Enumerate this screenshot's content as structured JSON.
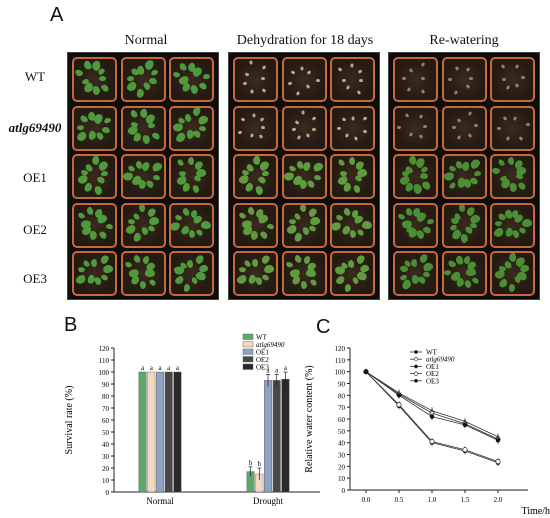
{
  "panel_a": {
    "letter": "A",
    "columns": [
      "Normal",
      "Dehydration for 18 days",
      "Re-watering"
    ],
    "rows": [
      "WT",
      "atlg69490",
      "OE1",
      "OE2",
      "OE3"
    ]
  },
  "panel_b": {
    "letter": "B"
  },
  "panel_c": {
    "letter": "C"
  },
  "chart_data": [
    {
      "type": "bar",
      "ylabel": "Survival rate (%)",
      "categories": [
        "Normal",
        "Drought"
      ],
      "ylim": [
        0,
        120
      ],
      "yticks": [
        0,
        10,
        20,
        30,
        40,
        50,
        60,
        70,
        80,
        90,
        100,
        110,
        120
      ],
      "series": [
        {
          "name": "WT",
          "values": [
            100,
            17
          ],
          "errors": [
            0,
            4
          ],
          "letters": [
            "a",
            "b"
          ],
          "color": "#5aa86a"
        },
        {
          "name": "atlg69490",
          "values": [
            100,
            15
          ],
          "errors": [
            0,
            5
          ],
          "letters": [
            "a",
            "b"
          ],
          "color": "#f2d8c4"
        },
        {
          "name": "OE1",
          "values": [
            100,
            93
          ],
          "errors": [
            0,
            5
          ],
          "letters": [
            "a",
            "a"
          ],
          "color": "#8ea2c4"
        },
        {
          "name": "OE2",
          "values": [
            100,
            93
          ],
          "errors": [
            0,
            5
          ],
          "letters": [
            "a",
            "a"
          ],
          "color": "#484848"
        },
        {
          "name": "OE3",
          "values": [
            100,
            94
          ],
          "errors": [
            0,
            6
          ],
          "letters": [
            "a",
            "a"
          ],
          "color": "#2a2a2a"
        }
      ]
    },
    {
      "type": "line",
      "ylabel": "Relative water content (%)",
      "xlabel": "Time/h",
      "x": [
        0.0,
        0.5,
        1.0,
        1.5,
        2.0
      ],
      "xticks": [
        "0.0",
        "0.5",
        "1.0",
        "1.5",
        "2.0"
      ],
      "ylim": [
        0,
        120
      ],
      "yticks": [
        0,
        10,
        20,
        30,
        40,
        50,
        60,
        70,
        80,
        90,
        100,
        110,
        120
      ],
      "series": [
        {
          "name": "WT",
          "values": [
            100,
            71,
            40,
            33,
            23
          ],
          "marker": "filled-circle"
        },
        {
          "name": "atlg69490",
          "values": [
            100,
            72,
            41,
            34,
            24
          ],
          "marker": "open-circle"
        },
        {
          "name": "OE1",
          "values": [
            100,
            82,
            67,
            58,
            45
          ],
          "marker": "triangle"
        },
        {
          "name": "OE2",
          "values": [
            100,
            81,
            65,
            56,
            43
          ],
          "marker": "open-diamond"
        },
        {
          "name": "OE3",
          "values": [
            100,
            80,
            62,
            55,
            42
          ],
          "marker": "filled-circle"
        }
      ]
    }
  ]
}
